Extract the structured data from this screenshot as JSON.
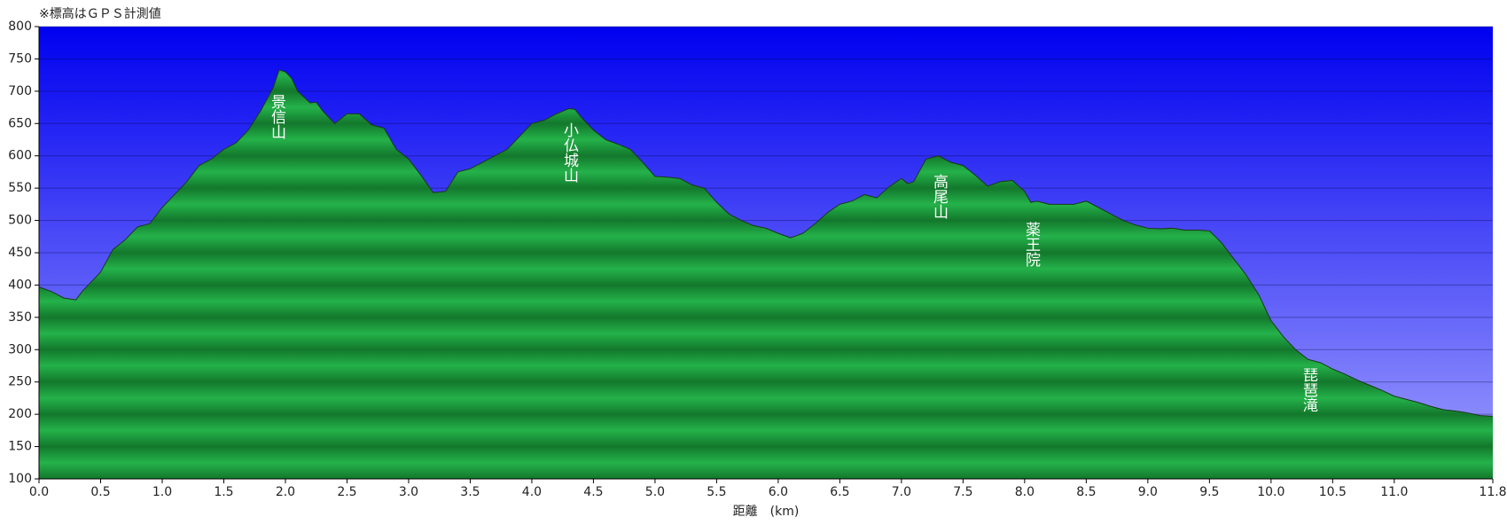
{
  "chart_data": {
    "type": "area",
    "title": "※標高はＧＰＳ計測値",
    "x_label": "距離　(km)",
    "x": [
      0.0,
      0.1,
      0.2,
      0.3,
      0.35,
      0.4,
      0.5,
      0.6,
      0.7,
      0.8,
      0.9,
      1.0,
      1.1,
      1.2,
      1.3,
      1.4,
      1.5,
      1.6,
      1.7,
      1.8,
      1.9,
      1.95,
      2.0,
      2.05,
      2.1,
      2.2,
      2.25,
      2.3,
      2.4,
      2.5,
      2.6,
      2.7,
      2.8,
      2.9,
      3.0,
      3.1,
      3.2,
      3.3,
      3.4,
      3.5,
      3.6,
      3.7,
      3.8,
      3.9,
      4.0,
      4.1,
      4.2,
      4.3,
      4.35,
      4.4,
      4.5,
      4.6,
      4.7,
      4.8,
      4.9,
      5.0,
      5.1,
      5.2,
      5.3,
      5.4,
      5.5,
      5.6,
      5.7,
      5.8,
      5.9,
      6.0,
      6.1,
      6.2,
      6.3,
      6.4,
      6.5,
      6.6,
      6.7,
      6.8,
      6.9,
      7.0,
      7.05,
      7.1,
      7.2,
      7.3,
      7.4,
      7.5,
      7.6,
      7.7,
      7.8,
      7.9,
      8.0,
      8.05,
      8.1,
      8.2,
      8.3,
      8.4,
      8.5,
      8.6,
      8.7,
      8.8,
      8.9,
      9.0,
      9.1,
      9.2,
      9.3,
      9.4,
      9.5,
      9.6,
      9.7,
      9.8,
      9.9,
      10.0,
      10.1,
      10.2,
      10.3,
      10.4,
      10.5,
      10.6,
      10.7,
      10.8,
      10.9,
      11.0,
      11.1,
      11.2,
      11.3,
      11.4,
      11.5,
      11.6,
      11.7,
      11.8
    ],
    "series": [
      {
        "color": "#1fa746",
        "values": [
          397,
          390,
          380,
          377,
          390,
          400,
          420,
          455,
          470,
          490,
          495,
          520,
          540,
          560,
          585,
          595,
          610,
          620,
          640,
          670,
          705,
          733,
          730,
          720,
          700,
          682,
          683,
          670,
          650,
          665,
          665,
          648,
          643,
          610,
          595,
          570,
          543,
          545,
          575,
          580,
          590,
          600,
          610,
          630,
          650,
          655,
          665,
          673,
          672,
          660,
          640,
          625,
          618,
          610,
          590,
          568,
          567,
          565,
          555,
          550,
          528,
          510,
          500,
          492,
          488,
          480,
          473,
          480,
          495,
          512,
          525,
          530,
          540,
          535,
          552,
          565,
          557,
          560,
          595,
          600,
          590,
          585,
          570,
          553,
          560,
          562,
          545,
          528,
          530,
          525,
          525,
          525,
          530,
          520,
          510,
          500,
          493,
          488,
          487,
          488,
          485,
          485,
          484,
          465,
          440,
          415,
          385,
          345,
          320,
          300,
          285,
          280,
          270,
          262,
          253,
          245,
          237,
          228,
          223,
          218,
          212,
          207,
          205,
          202,
          198,
          197
        ]
      }
    ],
    "annotations": [
      "景信山",
      "小仏城山",
      "高尾山",
      "薬王院",
      "琵琶滝"
    ],
    "xlim": [
      0,
      11.8
    ],
    "xticks": [
      {
        "value": 0,
        "label": "0.0"
      },
      0.5,
      {
        "value": 1,
        "label": "1.0"
      },
      1.5,
      {
        "value": 2,
        "label": "2.0"
      },
      2.5,
      {
        "value": 3,
        "label": "3.0"
      },
      3.5,
      {
        "value": 4,
        "label": "4.0"
      },
      4.5,
      {
        "value": 5,
        "label": "5.0"
      },
      5.5,
      {
        "value": 6,
        "label": "6.0"
      },
      6.5,
      {
        "value": 7,
        "label": "7.0"
      },
      7.5,
      {
        "value": 8,
        "label": "8.0"
      },
      8.5,
      {
        "value": 9,
        "label": "9.0"
      },
      9.5,
      {
        "value": 10,
        "label": "10.0"
      },
      10.5,
      {
        "value": 11,
        "label": "11.0"
      },
      11.8
    ],
    "ylim": [
      100,
      800
    ],
    "yticks": [
      100,
      150,
      200,
      250,
      300,
      350,
      400,
      450,
      500,
      550,
      600,
      650,
      700,
      750,
      800
    ],
    "grid": true
  }
}
